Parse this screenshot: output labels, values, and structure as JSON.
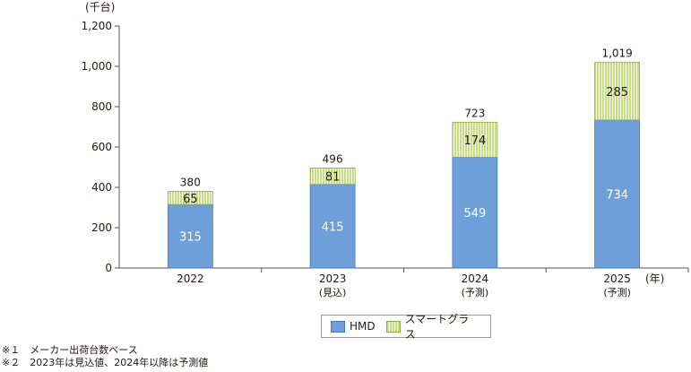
{
  "chart_data": {
    "type": "bar",
    "stacked": true,
    "unit_label": "(千台)",
    "x_unit_label": "(年)",
    "categories": [
      "2022",
      "2023",
      "2024",
      "2025"
    ],
    "category_sublabels": [
      "",
      "(見込)",
      "(予測)",
      "(予測)"
    ],
    "series": [
      {
        "name": "HMD",
        "values": [
          315,
          415,
          549,
          734
        ],
        "color": "#6f9fd8"
      },
      {
        "name": "スマートグラス",
        "values": [
          65,
          81,
          174,
          285
        ],
        "color": "#c6e07f"
      }
    ],
    "totals": [
      380,
      496,
      723,
      1019
    ],
    "total_labels": [
      "380",
      "496",
      "723",
      "1,019"
    ],
    "ylim": [
      0,
      1200
    ],
    "yticks": [
      0,
      200,
      400,
      600,
      800,
      1000,
      1200
    ],
    "ytick_labels": [
      "0",
      "200",
      "400",
      "600",
      "800",
      "1,000",
      "1,200"
    ],
    "grid": false,
    "legend_position": "bottom"
  },
  "notes": [
    "※１　メーカー出荷台数ベース",
    "※２　2023年は見込値、2024年以降は予測値"
  ]
}
